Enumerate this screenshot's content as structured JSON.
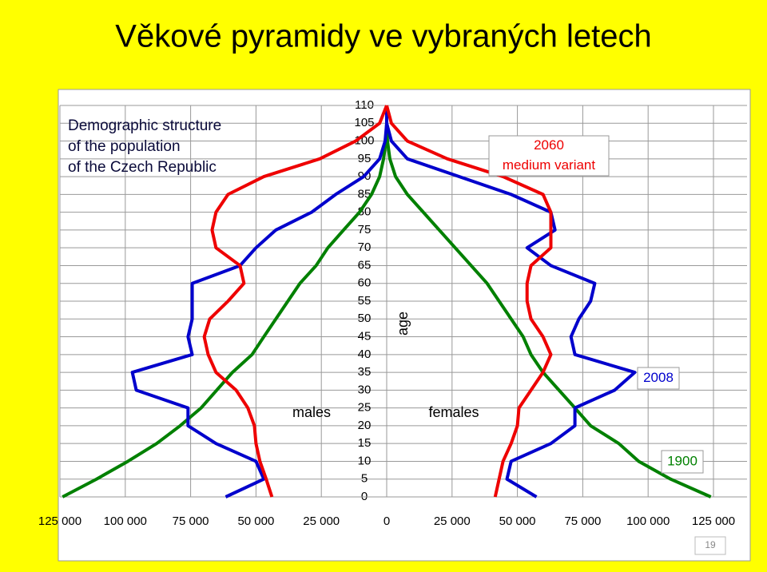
{
  "page": {
    "title": "Věkové pyramidy ve vybraných letech",
    "page_number": "19"
  },
  "chart_data": {
    "type": "pyramid",
    "description": [
      "Demographic structure",
      "of the population",
      "of the Czech Republic"
    ],
    "left_label": "males",
    "right_label": "females",
    "age_label": "age",
    "ages": [
      0,
      5,
      10,
      15,
      20,
      25,
      30,
      35,
      40,
      45,
      50,
      55,
      60,
      65,
      70,
      75,
      80,
      85,
      90,
      95,
      100,
      105,
      110
    ],
    "ylim": [
      0,
      110
    ],
    "yticks": [
      0,
      5,
      10,
      15,
      20,
      25,
      30,
      35,
      40,
      45,
      50,
      55,
      60,
      65,
      70,
      75,
      80,
      85,
      90,
      95,
      100,
      105,
      110
    ],
    "xlim": [
      0,
      125000
    ],
    "male_xticks": [
      {
        "value": 125000,
        "label": "125 000"
      },
      {
        "value": 100000,
        "label": "100 000"
      },
      {
        "value": 75000,
        "label": "75 000"
      },
      {
        "value": 50000,
        "label": "50 000"
      },
      {
        "value": 25000,
        "label": "25 000"
      }
    ],
    "female_xticks": [
      0,
      {
        "value": 25000,
        "label": "25 000"
      },
      {
        "value": 50000,
        "label": "50 000"
      },
      {
        "value": 75000,
        "label": "75 000"
      },
      {
        "value": 100000,
        "label": "100 000"
      },
      {
        "value": 125000,
        "label": "125 000"
      }
    ],
    "grid": true,
    "series": [
      {
        "name": "1900",
        "color": "#008000",
        "male_values": [
          124000,
          111000,
          99000,
          88000,
          79000,
          71000,
          65000,
          59000,
          51500,
          47000,
          42400,
          37800,
          33200,
          27000,
          22500,
          16500,
          10400,
          5800,
          2700,
          1200,
          300,
          0,
          0
        ],
        "female_values": [
          124000,
          108600,
          96400,
          88800,
          78000,
          72000,
          65900,
          59800,
          55200,
          52200,
          47600,
          43000,
          38400,
          32300,
          26200,
          20100,
          14000,
          7900,
          3400,
          1200,
          300,
          0,
          0
        ]
      },
      {
        "name": "2008",
        "color": "#0000cc",
        "male_values": [
          61600,
          47000,
          50000,
          65300,
          76000,
          76000,
          95800,
          97300,
          74400,
          76000,
          74400,
          74400,
          74400,
          56100,
          50000,
          42400,
          28700,
          19500,
          8800,
          2700,
          600,
          0,
          0
        ],
        "female_values": [
          57300,
          46000,
          47600,
          62800,
          72000,
          72000,
          87200,
          94900,
          72000,
          70500,
          73500,
          78000,
          79600,
          62800,
          53700,
          64400,
          62800,
          47600,
          27800,
          7900,
          1800,
          0,
          0
        ]
      },
      {
        "name": "2060",
        "variant": "medium variant",
        "color": "#ee0000",
        "male_values": [
          43900,
          46100,
          48500,
          50000,
          50600,
          53100,
          57600,
          65300,
          68300,
          69800,
          67700,
          60700,
          54600,
          56100,
          65300,
          66800,
          65300,
          60700,
          47000,
          25600,
          11900,
          2700,
          0
        ],
        "female_values": [
          41500,
          43000,
          44500,
          47600,
          50000,
          50600,
          55200,
          59800,
          62800,
          59800,
          55200,
          53700,
          53700,
          55200,
          62800,
          62800,
          62800,
          59800,
          44500,
          23200,
          7900,
          1800,
          0
        ]
      }
    ]
  }
}
